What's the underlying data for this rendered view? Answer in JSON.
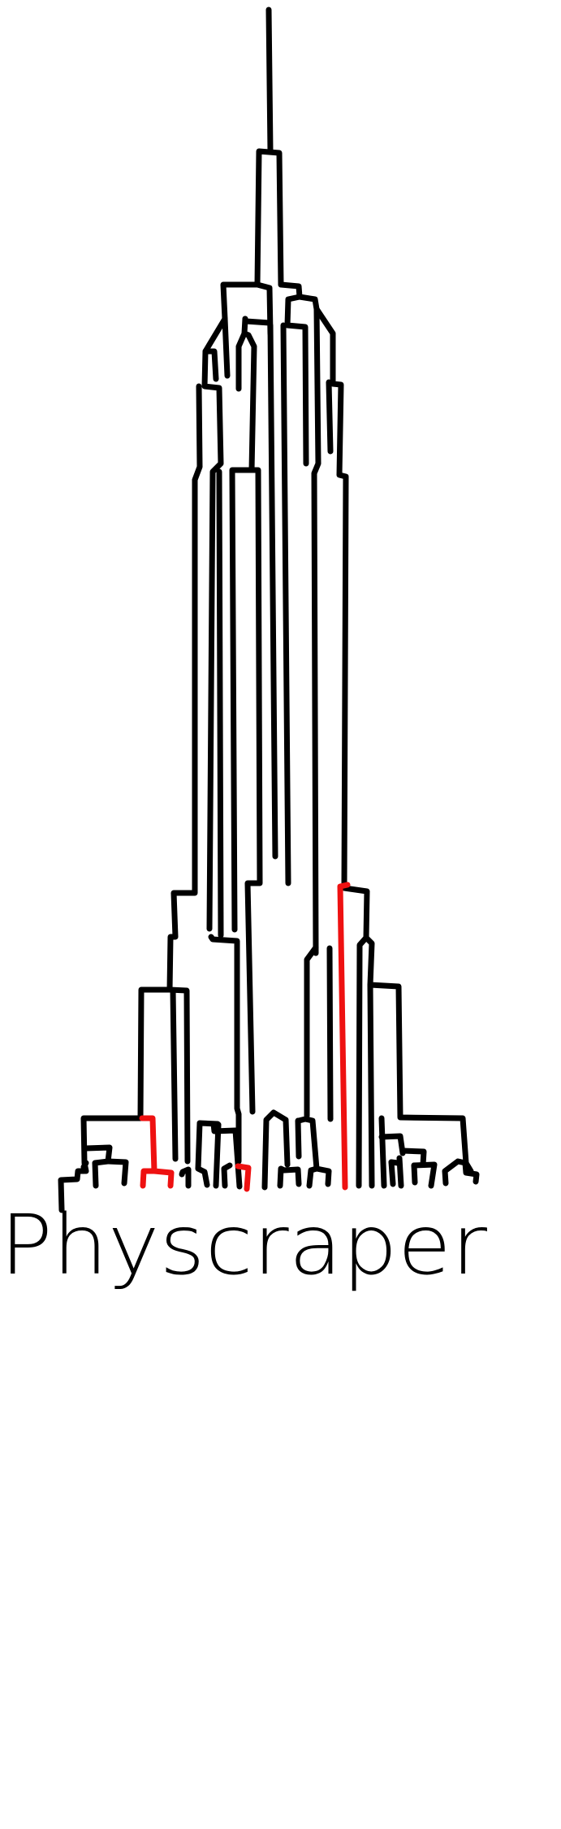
{
  "logo": {
    "wordmark": "Physcraper",
    "stroke_color": "#000000",
    "highlight_color": "#ee1111",
    "background": "#ffffff"
  }
}
